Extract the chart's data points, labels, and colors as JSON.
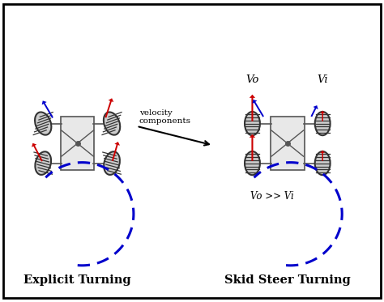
{
  "title": "Skid Steer / Explicit Turning Diagram",
  "bg_color": "#ffffff",
  "border_color": "#000000",
  "label_left": "Explicit Turning",
  "label_right": "Skid Steer Turning",
  "label_vo": "Vo",
  "label_vi": "Vi",
  "label_vo_gt_vi": "Vo >> Vi",
  "label_velocity": "velocity\ncomponents",
  "red": "#cc0000",
  "blue": "#0000cc",
  "black": "#000000",
  "gray": "#888888",
  "dark_gray": "#444444",
  "wheel_color": "#333333",
  "frame_color": "#555555"
}
